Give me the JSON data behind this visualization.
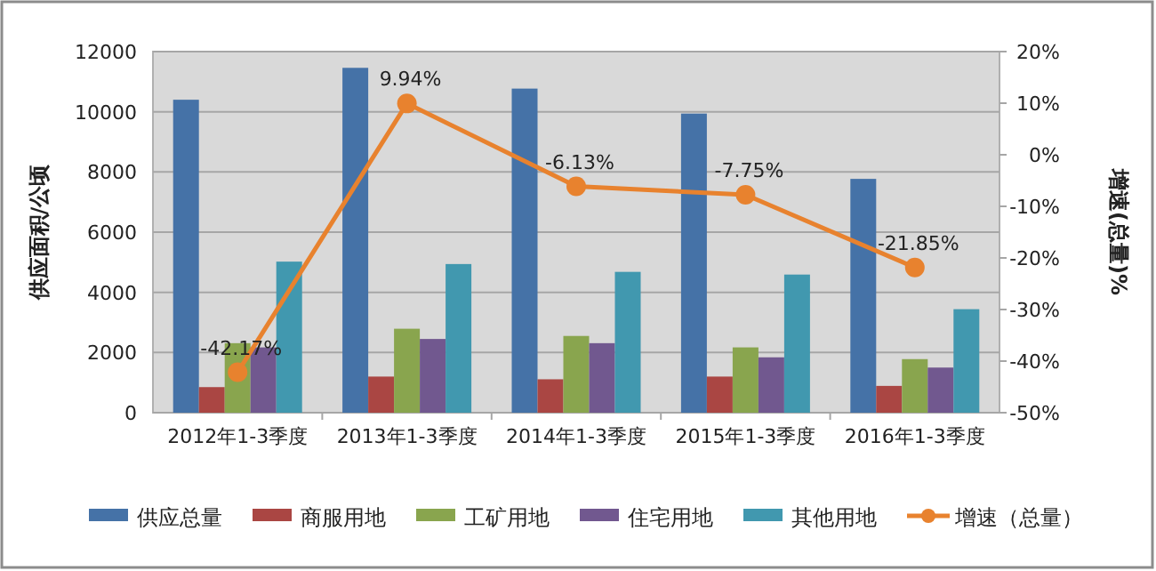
{
  "chart_data": {
    "type": "bar",
    "ylabel": "供应面积/公顷",
    "y2label": "增速(总量)%",
    "categories": [
      "2012年1-3季度",
      "2013年1-3季度",
      "2014年1-3季度",
      "2015年1-3季度",
      "2016年1-3季度"
    ],
    "series": [
      {
        "name": "供应总量",
        "color": "#4572a7",
        "values": [
          10400,
          11460,
          10770,
          9940,
          7770
        ]
      },
      {
        "name": "商服用地",
        "color": "#aa4643",
        "values": [
          850,
          1200,
          1110,
          1200,
          890
        ]
      },
      {
        "name": "工矿用地",
        "color": "#89a54e",
        "values": [
          2310,
          2790,
          2550,
          2170,
          1780
        ]
      },
      {
        "name": "住宅用地",
        "color": "#71588f",
        "values": [
          2170,
          2450,
          2310,
          1840,
          1500
        ]
      },
      {
        "name": "其他用地",
        "color": "#4198af",
        "values": [
          5020,
          4940,
          4680,
          4590,
          3440
        ]
      },
      {
        "name": "增速（总量）",
        "type": "line",
        "axis": "y2",
        "color": "#e8822e",
        "marker": "circle",
        "values": [
          -42.17,
          9.94,
          -6.13,
          -7.75,
          -21.85
        ],
        "value_labels": [
          "-42.17%",
          "9.94%",
          "-6.13%",
          "-7.75%",
          "-21.85%"
        ]
      }
    ],
    "ylim": [
      0,
      12000
    ],
    "yticks": [
      0,
      2000,
      4000,
      6000,
      8000,
      10000,
      12000
    ],
    "y2lim": [
      -50,
      20
    ],
    "y2ticks": [
      {
        "value": -50,
        "label": "-50%"
      },
      {
        "value": -40,
        "label": "-40%"
      },
      {
        "value": -30,
        "label": "-30%"
      },
      {
        "value": -20,
        "label": "-20%"
      },
      {
        "value": -10,
        "label": "-10%"
      },
      {
        "value": 0,
        "label": "0%"
      },
      {
        "value": 10,
        "label": "10%"
      },
      {
        "value": 20,
        "label": "20%"
      }
    ],
    "grid": "y",
    "legend": "bottom"
  }
}
